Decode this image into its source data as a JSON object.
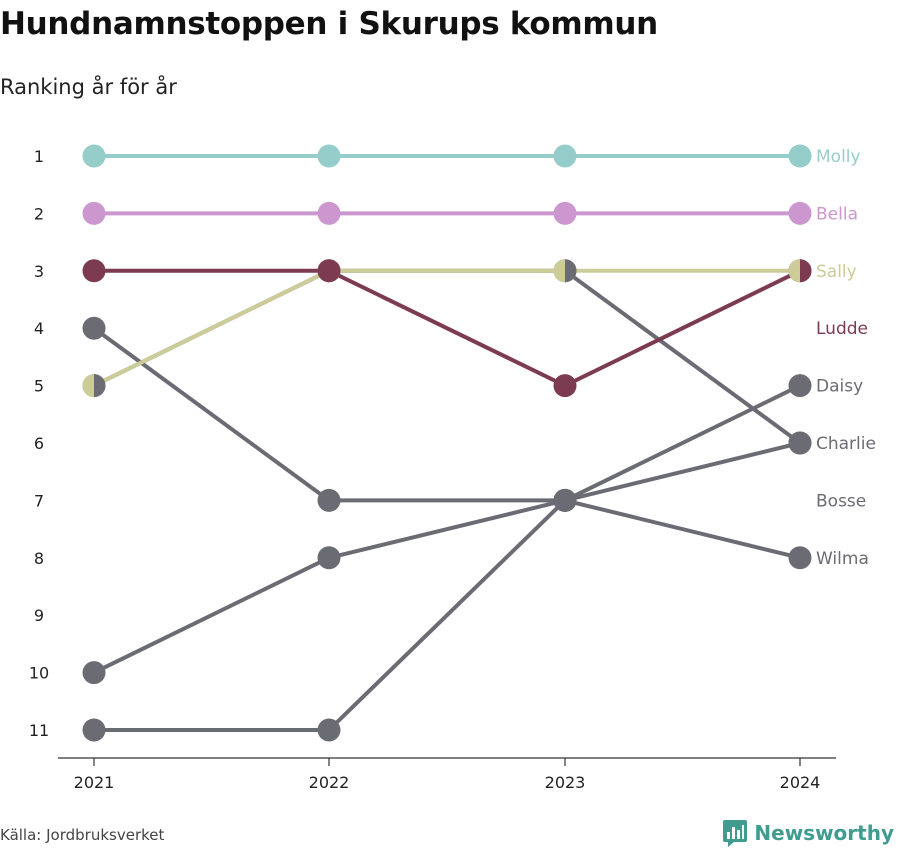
{
  "title": "Hundnamnstoppen i Skurups kommun",
  "subtitle": "Ranking år för år",
  "source": "Källa: Jordbruksverket",
  "brand": "Newsworthy",
  "colors": {
    "molly": "#94cdc9",
    "bella": "#cc96cf",
    "sally": "#cbcc98",
    "ludde": "#7d3b52",
    "grey": "#6b6b73",
    "axis": "#333333",
    "brand": "#3f9c8f"
  },
  "chart_data": {
    "type": "line",
    "title": "Hundnamnstoppen i Skurups kommun",
    "subtitle": "Ranking år för år",
    "x": [
      "2021",
      "2022",
      "2023",
      "2024"
    ],
    "y_ticks": [
      1,
      2,
      3,
      4,
      5,
      6,
      7,
      8,
      9,
      10,
      11
    ],
    "ylim": [
      1,
      11
    ],
    "y_reversed": true,
    "series": [
      {
        "name": "Molly",
        "color": "#94cdc9",
        "values": [
          1,
          1,
          1,
          1
        ]
      },
      {
        "name": "Bella",
        "color": "#cc96cf",
        "values": [
          2,
          2,
          2,
          2
        ]
      },
      {
        "name": "Sally",
        "color": "#cbcc98",
        "values": [
          5,
          3,
          3,
          3
        ]
      },
      {
        "name": "Ludde",
        "color": "#7d3b52",
        "values": [
          3,
          3,
          5,
          3
        ]
      },
      {
        "name": "Daisy",
        "color": "#6b6b73",
        "values": [
          11,
          11,
          7,
          5
        ]
      },
      {
        "name": "Charlie",
        "color": "#6b6b73",
        "values": [
          4,
          7,
          7,
          6
        ]
      },
      {
        "name": "Bosse",
        "color": "#6b6b73",
        "values": [
          5,
          3,
          3,
          6
        ]
      },
      {
        "name": "Wilma",
        "color": "#6b6b73",
        "values": [
          10,
          8,
          7,
          8
        ]
      }
    ],
    "end_labels": [
      {
        "name": "Molly",
        "color": "#94cdc9",
        "rank": 1
      },
      {
        "name": "Bella",
        "color": "#cc96cf",
        "rank": 2
      },
      {
        "name": "Sally",
        "color": "#cbcc98",
        "rank": 3
      },
      {
        "name": "Ludde",
        "color": "#7d3b52",
        "rank": 4
      },
      {
        "name": "Daisy",
        "color": "#6b6b73",
        "rank": 5
      },
      {
        "name": "Charlie",
        "color": "#6b6b73",
        "rank": 6
      },
      {
        "name": "Bosse",
        "color": "#6b6b73",
        "rank": 7
      },
      {
        "name": "Wilma",
        "color": "#6b6b73",
        "rank": 8
      }
    ],
    "grid": false
  }
}
